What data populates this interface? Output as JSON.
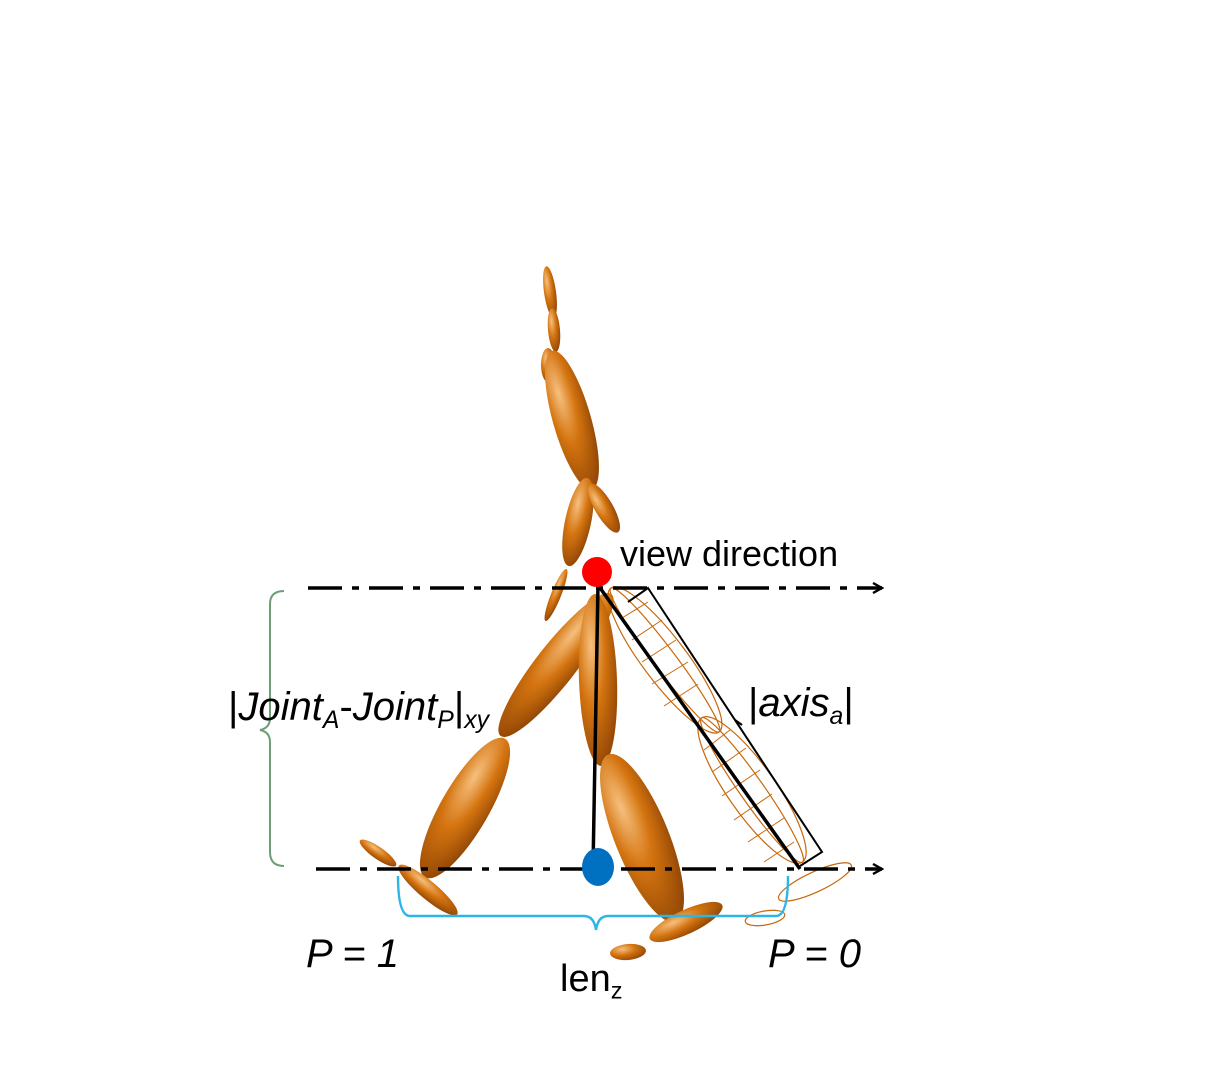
{
  "labels": {
    "view_direction": "view direction",
    "joint_diff": {
      "open": "|",
      "a": "Joint",
      "a_sub": "A",
      "dash": "-",
      "b": "Joint",
      "b_sub": "P",
      "close": "|",
      "close_sub": "xy"
    },
    "axis": {
      "open": "|",
      "main": "axis",
      "sub": "a",
      "close": "|"
    },
    "len": {
      "main": "len",
      "sub": "z"
    },
    "p_left": "P = 1",
    "p_right": "P = 0"
  },
  "colors": {
    "limb": "#c8680c",
    "limb_light": "#f3b066",
    "limb_dark": "#8a4104",
    "red_joint": "#ff0000",
    "blue_joint": "#0070c0",
    "len_brace": "#2bb5e8",
    "joint_brace": "#6f9e76",
    "line": "#000000"
  }
}
